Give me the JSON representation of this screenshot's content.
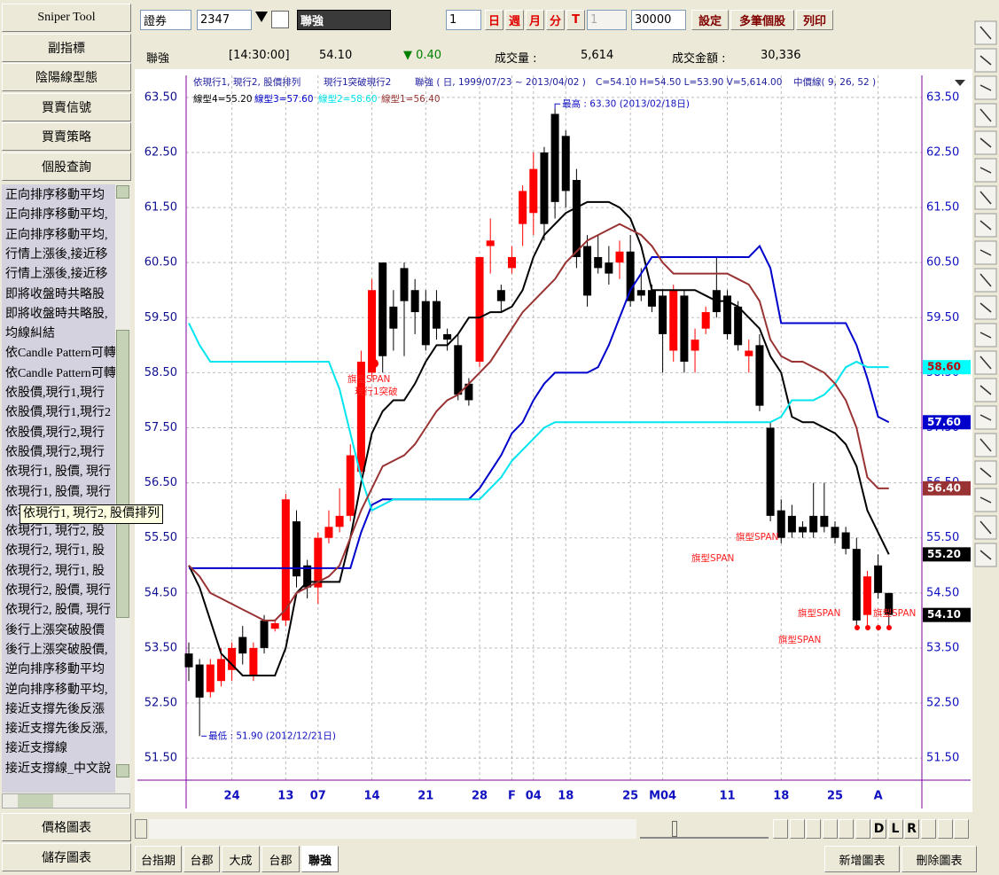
{
  "sidebar": {
    "buttons": [
      "Sniper Tool",
      "副指標",
      "陰陽線型態",
      "買賣信號",
      "買賣策略",
      "個股查詢"
    ],
    "list": [
      "正向排序移動平均",
      "正向排序移動平均,",
      "正向排序移動平均,",
      "行情上漲後,接近移",
      "行情上漲後,接近移",
      "即將收盤時共略股",
      "即將收盤時共略股,",
      "均線糾結",
      "依Candle Pattern可轉",
      "依Candle Pattern可轉",
      "依股價,現行1,現行",
      "依股價,現行1,現行2",
      "依股價,現行2,現行",
      "依股價,現行2,現行",
      "依現行1, 股價, 現行",
      "依現行1, 股價, 現行",
      "依現行1, 現行2, 股價排列",
      "依現行1, 現行2, 股",
      "依現行2, 現行1, 股",
      "依現行2, 現行1, 股",
      "依現行2, 股價, 現行",
      "依現行2, 股價, 現行",
      "後行上漲突破股價",
      "後行上漲突破股價,",
      "逆向排序移動平均",
      "逆向排序移動平均,",
      "接近支撐先後反漲",
      "接近支撐先後反漲,",
      "接近支撐線",
      "接近支撐線_中文說"
    ],
    "tooltip": "依現行1, 現行2, 股價排列",
    "bottom_buttons": [
      "價格圖表",
      "儲存圖表"
    ]
  },
  "toolbar": {
    "market": "證券",
    "code": "2347",
    "name": "聯強",
    "period_count": "1",
    "periods": [
      "日",
      "週",
      "月",
      "分",
      "T"
    ],
    "minute": "1",
    "count": "30000",
    "actions": [
      "設定",
      "多筆個股",
      "列印"
    ]
  },
  "quote": {
    "name": "聯強",
    "time": "[14:30:00]",
    "price": "54.10",
    "change": "▼ 0.40",
    "volume_label": "成交量 :",
    "volume": "5,614",
    "amount_label": "成交金額 :",
    "amount": "30,336"
  },
  "chart_data": {
    "type": "candlestick",
    "legend_texts": [
      "依現行1, 現行2, 股價排列",
      "現行1突破現行2",
      "聯強 ( 日, 1999/07/23 ~ 2013/04/02 )",
      "C=54.10 H=54.50 L=53.90 V=5,614.00",
      "中價線( 9, 26, 52 )"
    ],
    "high_annotation": "最高 : 63.30 (2013/02/18日)",
    "low_annotation": "最低 : 51.90 (2012/12/21日)",
    "signal_annotations": [
      "旗型SPAN",
      "現行1突破",
      "旗型SPAN",
      "旗型SPAN"
    ],
    "categories": [
      null,
      null,
      null,
      null,
      "24",
      null,
      null,
      null,
      null,
      "13",
      null,
      null,
      "07",
      null,
      null,
      null,
      null,
      "14",
      null,
      null,
      null,
      null,
      "21",
      null,
      null,
      null,
      null,
      "28",
      null,
      null,
      "F",
      null,
      "04",
      null,
      null,
      "18",
      null,
      null,
      null,
      null,
      null,
      "25",
      null,
      null,
      "M04",
      null,
      null,
      null,
      null,
      null,
      "11",
      null,
      null,
      null,
      null,
      "18",
      null,
      null,
      null,
      null,
      "25",
      null,
      null,
      null,
      "A",
      null
    ],
    "open": [
      53.4,
      53.2,
      52.7,
      52.9,
      53.1,
      53.7,
      53.0,
      54.0,
      53.85,
      54.0,
      55.8,
      55.0,
      54.6,
      55.5,
      55.7,
      55.9,
      56.7,
      58.5,
      60.5,
      59.7,
      60.4,
      60.0,
      59.8,
      59.8,
      59.2,
      59.0,
      58.3,
      58.7,
      60.8,
      60.0,
      60.4,
      61.2,
      61.4,
      62.5,
      63.2,
      62.8,
      62.0,
      60.8,
      60.6,
      60.5,
      60.5,
      60.7,
      60.0,
      60.0,
      59.9,
      58.9,
      59.9,
      58.9,
      59.3,
      60.0,
      59.9,
      59.7,
      58.8,
      59.0,
      57.5,
      56.0,
      55.9,
      55.7,
      55.9,
      55.9,
      55.7,
      55.6,
      55.3,
      54.1,
      55.0,
      54.5
    ],
    "high": [
      53.6,
      53.3,
      53.3,
      53.5,
      53.6,
      53.9,
      53.6,
      54.1,
      54.0,
      56.3,
      56.0,
      55.1,
      55.6,
      56.0,
      56.4,
      57.2,
      58.9,
      60.2,
      60.5,
      60.0,
      60.5,
      60.2,
      60.0,
      60.0,
      59.3,
      59.2,
      58.4,
      60.6,
      61.3,
      60.1,
      60.8,
      61.9,
      62.5,
      62.6,
      63.3,
      62.9,
      62.2,
      61.0,
      61.0,
      60.8,
      60.9,
      61.0,
      60.4,
      60.1,
      60.0,
      60.1,
      60.0,
      59.3,
      59.7,
      60.6,
      60.0,
      59.8,
      59.1,
      59.2,
      57.6,
      56.2,
      56.1,
      55.8,
      56.5,
      56.5,
      55.8,
      55.7,
      55.5,
      54.9,
      55.2,
      54.5
    ],
    "low": [
      52.9,
      51.9,
      52.6,
      52.8,
      52.9,
      53.2,
      52.9,
      53.4,
      53.8,
      53.9,
      54.6,
      54.4,
      54.3,
      55.4,
      55.6,
      55.8,
      56.5,
      58.4,
      58.5,
      58.9,
      58.8,
      59.2,
      58.9,
      59.1,
      58.9,
      58.0,
      57.9,
      58.6,
      60.3,
      59.6,
      60.3,
      60.8,
      61.0,
      60.9,
      61.3,
      61.5,
      60.4,
      59.7,
      60.3,
      60.1,
      60.2,
      59.7,
      59.8,
      59.6,
      58.5,
      58.7,
      58.5,
      58.5,
      59.2,
      59.5,
      59.1,
      58.9,
      58.5,
      57.8,
      55.8,
      55.4,
      55.5,
      55.5,
      55.5,
      55.6,
      55.4,
      55.2,
      53.9,
      53.9,
      54.4,
      53.9
    ],
    "close": [
      53.15,
      52.6,
      53.2,
      53.3,
      53.5,
      53.4,
      53.5,
      53.5,
      53.95,
      56.2,
      54.8,
      54.6,
      55.5,
      55.7,
      55.9,
      57.0,
      58.7,
      60.0,
      58.8,
      59.3,
      59.8,
      59.6,
      59.0,
      59.3,
      59.1,
      58.1,
      58.0,
      60.6,
      60.9,
      59.8,
      60.6,
      61.8,
      62.2,
      61.2,
      61.6,
      61.8,
      60.6,
      59.9,
      60.4,
      60.3,
      60.7,
      59.8,
      59.9,
      59.7,
      59.2,
      60.0,
      58.7,
      59.1,
      59.6,
      59.6,
      59.2,
      59.0,
      58.9,
      57.9,
      55.9,
      55.5,
      55.6,
      55.6,
      55.6,
      55.7,
      55.5,
      55.3,
      54.0,
      54.8,
      54.5,
      54.1
    ],
    "up_color": "#ff0000",
    "down_color": "#000000",
    "series": [
      {
        "name": "線型4=55.20",
        "color": "#000000",
        "values": [
          55.0,
          54.6,
          54.0,
          53.4,
          53.2,
          53.0,
          53.0,
          53.0,
          53.0,
          53.5,
          54.5,
          54.7,
          54.7,
          54.7,
          54.7,
          55.5,
          56.5,
          57.4,
          57.8,
          58.0,
          58.0,
          58.3,
          58.7,
          59.0,
          59.0,
          59.2,
          59.5,
          59.5,
          59.6,
          59.6,
          59.7,
          60.0,
          60.6,
          61.0,
          61.2,
          61.4,
          61.5,
          61.6,
          61.6,
          61.6,
          61.5,
          61.3,
          60.8,
          60.0,
          60.0,
          60.0,
          60.0,
          60.0,
          59.9,
          59.8,
          59.8,
          59.7,
          59.5,
          59.3,
          58.8,
          58.5,
          57.7,
          57.6,
          57.6,
          57.5,
          57.4,
          57.2,
          56.8,
          56.0,
          55.6,
          55.2
        ]
      },
      {
        "name": "線型3=57.60",
        "color": "#0000cc",
        "values": [
          54.95,
          54.95,
          54.95,
          54.95,
          54.95,
          54.95,
          54.95,
          54.95,
          54.95,
          54.95,
          54.95,
          54.95,
          54.95,
          54.95,
          54.95,
          54.95,
          55.6,
          56.1,
          56.2,
          56.2,
          56.2,
          56.2,
          56.2,
          56.2,
          56.2,
          56.2,
          56.2,
          56.4,
          56.7,
          57.0,
          57.4,
          57.6,
          58.0,
          58.3,
          58.5,
          58.5,
          58.5,
          58.5,
          58.6,
          59.0,
          59.5,
          60.0,
          60.3,
          60.6,
          60.6,
          60.6,
          60.6,
          60.6,
          60.6,
          60.6,
          60.6,
          60.6,
          60.6,
          60.8,
          60.4,
          59.4,
          59.4,
          59.4,
          59.4,
          59.4,
          59.4,
          59.4,
          59.0,
          58.4,
          57.7,
          57.6
        ]
      },
      {
        "name": "線型2=58.60",
        "color": "#00e5ee",
        "values": [
          59.4,
          59.0,
          58.7,
          58.7,
          58.7,
          58.7,
          58.7,
          58.7,
          58.7,
          58.7,
          58.7,
          58.7,
          58.7,
          58.7,
          58.2,
          57.4,
          56.6,
          56.0,
          56.1,
          56.2,
          56.2,
          56.2,
          56.2,
          56.2,
          56.2,
          56.2,
          56.2,
          56.2,
          56.4,
          56.6,
          56.9,
          57.1,
          57.3,
          57.5,
          57.6,
          57.6,
          57.6,
          57.6,
          57.6,
          57.6,
          57.6,
          57.6,
          57.6,
          57.6,
          57.6,
          57.6,
          57.6,
          57.6,
          57.6,
          57.6,
          57.6,
          57.6,
          57.6,
          57.6,
          57.6,
          57.7,
          58.0,
          58.0,
          58.0,
          58.1,
          58.3,
          58.6,
          58.7,
          58.6,
          58.6,
          58.6
        ]
      },
      {
        "name": "線型1=56.40",
        "color": "#993333",
        "values": [
          55.0,
          54.8,
          54.5,
          54.4,
          54.3,
          54.2,
          54.1,
          54.0,
          54.0,
          54.2,
          54.5,
          54.6,
          54.7,
          54.8,
          55.0,
          55.5,
          56.0,
          56.4,
          56.8,
          56.9,
          57.0,
          57.2,
          57.5,
          57.8,
          58.0,
          58.1,
          58.3,
          58.5,
          58.7,
          59.0,
          59.3,
          59.6,
          59.8,
          60.0,
          60.2,
          60.5,
          60.7,
          60.9,
          61.0,
          61.1,
          61.2,
          61.1,
          61.0,
          60.8,
          60.5,
          60.3,
          60.3,
          60.3,
          60.3,
          60.3,
          60.3,
          60.2,
          60.1,
          59.8,
          59.1,
          58.8,
          58.7,
          58.7,
          58.6,
          58.5,
          58.3,
          58.0,
          57.5,
          56.6,
          56.4,
          56.4
        ]
      }
    ],
    "ylim": [
      51.1,
      63.9
    ],
    "yticks": [
      {
        "value": 51.5,
        "label": "51.50"
      },
      {
        "value": 52.5,
        "label": "52.50"
      },
      {
        "value": 53.5,
        "label": "53.50"
      },
      {
        "value": 54.5,
        "label": "54.50"
      },
      {
        "value": 55.5,
        "label": "55.50"
      },
      {
        "value": 56.5,
        "label": "56.50"
      },
      {
        "value": 57.5,
        "label": "57.50"
      },
      {
        "value": 58.5,
        "label": "58.50"
      },
      {
        "value": 59.5,
        "label": "59.50"
      },
      {
        "value": 60.5,
        "label": "60.50"
      },
      {
        "value": 61.5,
        "label": "61.50"
      },
      {
        "value": 62.5,
        "label": "62.50"
      },
      {
        "value": 63.5,
        "label": "63.50"
      }
    ],
    "price_tags": [
      {
        "value": 58.6,
        "label": "58.60",
        "color": "#00ffff"
      },
      {
        "value": 57.6,
        "label": "57.60",
        "color": "#0000cc"
      },
      {
        "value": 56.4,
        "label": "56.40",
        "color": "#993333"
      },
      {
        "value": 55.2,
        "label": "55.20",
        "color": "#000000"
      },
      {
        "value": 54.1,
        "label": "54.10",
        "color": "#000000"
      }
    ],
    "grid": true
  },
  "nav_buttons": [
    "D",
    "L",
    "R"
  ],
  "tabs": [
    "台指期",
    "台郡",
    "大成",
    "台郡",
    "聯強"
  ],
  "chart_buttons": [
    "新增圖表",
    "刪除圖表"
  ]
}
